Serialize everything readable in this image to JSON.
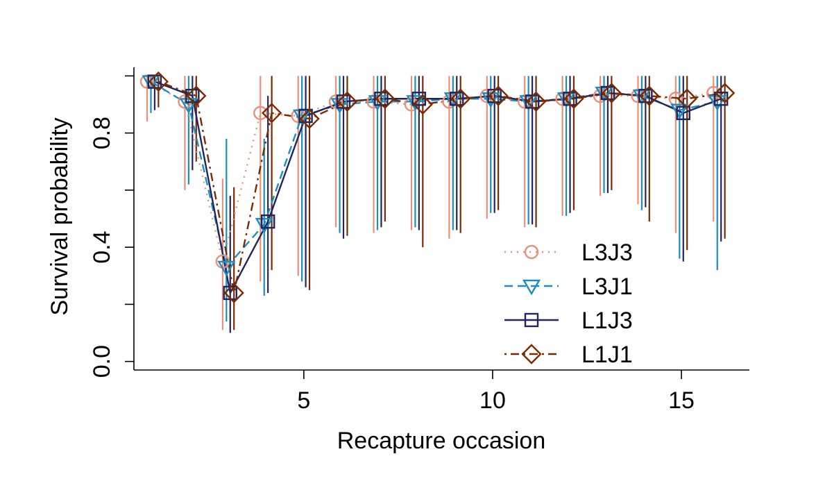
{
  "chart_data": {
    "type": "line",
    "xlabel": "Recapture occasion",
    "ylabel": "Survival probability",
    "xlim": [
      0.5,
      16.8
    ],
    "ylim": [
      -0.03,
      1.03
    ],
    "x_ticks": [
      5,
      10,
      15
    ],
    "x_tick_labels": [
      "5",
      "10",
      "15"
    ],
    "y_ticks": [
      0.0,
      0.2,
      0.4,
      0.6,
      0.8,
      1.0
    ],
    "y_tick_labels": [
      "0.0",
      "",
      "0.4",
      "",
      "0.8",
      ""
    ],
    "legend_position": "bottom-right",
    "x": [
      1,
      2,
      3,
      4,
      5,
      6,
      7,
      8,
      9,
      10,
      11,
      12,
      13,
      14,
      15,
      16
    ],
    "series": [
      {
        "name": "L3J3",
        "color": "#E8907A",
        "marker": "circle",
        "line_style": "dotted",
        "offset": -0.15,
        "values": [
          0.98,
          0.91,
          0.35,
          0.87,
          0.86,
          0.91,
          0.91,
          0.9,
          0.91,
          0.93,
          0.91,
          0.92,
          0.93,
          0.93,
          0.92,
          0.94
        ],
        "lower": [
          0.84,
          0.6,
          0.11,
          0.28,
          0.3,
          0.47,
          0.45,
          0.46,
          0.43,
          0.5,
          0.47,
          0.51,
          0.58,
          0.55,
          0.45,
          0.49
        ],
        "upper": [
          1.0,
          1.0,
          0.64,
          1.0,
          1.0,
          1.0,
          1.0,
          1.0,
          1.0,
          1.0,
          1.0,
          1.0,
          1.0,
          1.0,
          1.0,
          1.0
        ]
      },
      {
        "name": "L3J1",
        "color": "#1A8EBE",
        "marker": "triangle-down",
        "line_style": "dashed",
        "offset": -0.05,
        "values": [
          0.98,
          0.9,
          0.33,
          0.48,
          0.86,
          0.9,
          0.91,
          0.91,
          0.92,
          0.92,
          0.91,
          0.92,
          0.94,
          0.93,
          0.88,
          0.91
        ],
        "lower": [
          0.87,
          0.62,
          0.14,
          0.23,
          0.28,
          0.45,
          0.46,
          0.47,
          0.46,
          0.52,
          0.48,
          0.51,
          0.59,
          0.53,
          0.36,
          0.32
        ],
        "upper": [
          1.0,
          1.0,
          0.78,
          0.78,
          1.0,
          1.0,
          1.0,
          1.0,
          1.0,
          1.0,
          1.0,
          1.0,
          1.0,
          1.0,
          1.0,
          1.0
        ]
      },
      {
        "name": "L1J3",
        "color": "#23245E",
        "marker": "square",
        "line_style": "solid",
        "offset": 0.05,
        "values": [
          0.98,
          0.93,
          0.24,
          0.49,
          0.86,
          0.91,
          0.92,
          0.92,
          0.92,
          0.93,
          0.91,
          0.92,
          0.94,
          0.93,
          0.87,
          0.92
        ],
        "lower": [
          0.88,
          0.67,
          0.1,
          0.24,
          0.26,
          0.43,
          0.47,
          0.46,
          0.46,
          0.52,
          0.48,
          0.52,
          0.59,
          0.54,
          0.35,
          0.42
        ],
        "upper": [
          1.0,
          1.0,
          0.58,
          0.93,
          1.0,
          1.0,
          1.0,
          1.0,
          1.0,
          1.0,
          1.0,
          1.0,
          1.0,
          1.0,
          1.0,
          1.0
        ]
      },
      {
        "name": "L1J1",
        "color": "#7A2A00",
        "marker": "diamond",
        "line_style": "dotdash",
        "offset": 0.15,
        "values": [
          0.98,
          0.93,
          0.24,
          0.87,
          0.85,
          0.91,
          0.92,
          0.9,
          0.92,
          0.93,
          0.91,
          0.92,
          0.94,
          0.93,
          0.92,
          0.94
        ],
        "lower": [
          0.89,
          0.7,
          0.11,
          0.32,
          0.25,
          0.44,
          0.49,
          0.4,
          0.45,
          0.53,
          0.47,
          0.53,
          0.6,
          0.49,
          0.39,
          0.43
        ],
        "upper": [
          1.0,
          1.0,
          0.61,
          1.0,
          1.0,
          1.0,
          1.0,
          1.0,
          1.0,
          1.0,
          1.0,
          1.0,
          1.0,
          1.0,
          1.0,
          1.0
        ]
      }
    ]
  }
}
